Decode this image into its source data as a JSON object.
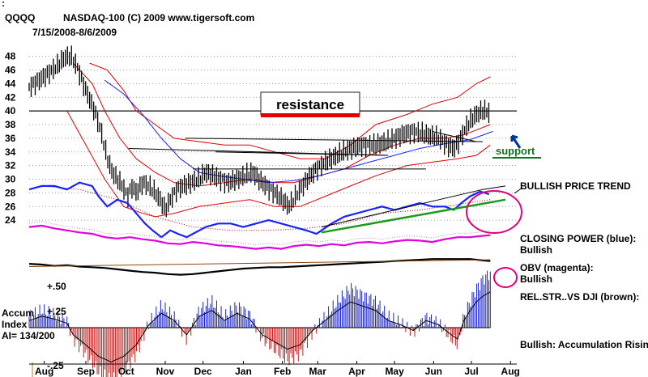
{
  "chart_data": {
    "type": "line",
    "symbol": "QQQQ",
    "title": "NASDAQ-100  (C) 2009 www.tigersoft.com",
    "date_range": "7/15/2008-8/6/2009",
    "y_ticks": [
      48,
      46,
      44,
      42,
      40,
      38,
      36,
      34,
      32,
      30,
      28,
      26,
      24
    ],
    "ylim": [
      22,
      49.5
    ],
    "x_labels": [
      "Aug",
      "Sep",
      "Oct",
      "Nov",
      "Dec",
      "Jan",
      "Feb",
      "Mar",
      "Apr",
      "May",
      "Jun",
      "Jul",
      "Aug"
    ],
    "x_days": [
      12,
      45,
      77,
      108,
      138,
      170,
      201,
      229,
      260,
      290,
      321,
      351,
      382
    ],
    "total_days": 387,
    "annotations": {
      "resistance": "resistance",
      "support": "support",
      "bullish_trend": "BULLISH PRICE TREND",
      "closing_power": "CLOSING POWER (blue):",
      "closing_power_state": "Bullish",
      "obv": "OBV (magenta):",
      "obv_state": "Bullish",
      "relstr": "REL.STR..VS DJI (brown):",
      "accum_rising": "Bullish: Accumulation Rising"
    },
    "accum_index": {
      "label_line1": "Accum",
      "label_line2": "Index",
      "label_line3": "AI= 134/200",
      "plus50": "+.50",
      "plus25": "+.25",
      "minus25": "-.25"
    },
    "price_points": [
      [
        0,
        43.5
      ],
      [
        8,
        44.5
      ],
      [
        15,
        45.5
      ],
      [
        22,
        46.5
      ],
      [
        28,
        47.8
      ],
      [
        33,
        48
      ],
      [
        38,
        46.5
      ],
      [
        45,
        43
      ],
      [
        52,
        40
      ],
      [
        57,
        37
      ],
      [
        62,
        33
      ],
      [
        66,
        31
      ],
      [
        70,
        30
      ],
      [
        74,
        29
      ],
      [
        78,
        27.5
      ],
      [
        82,
        29
      ],
      [
        85,
        28
      ],
      [
        90,
        29.5
      ],
      [
        95,
        29
      ],
      [
        100,
        28
      ],
      [
        104,
        27
      ],
      [
        108,
        25.5
      ],
      [
        112,
        27
      ],
      [
        117,
        28.5
      ],
      [
        122,
        29
      ],
      [
        128,
        29.5
      ],
      [
        135,
        30
      ],
      [
        140,
        31
      ],
      [
        146,
        30.5
      ],
      [
        152,
        30
      ],
      [
        158,
        29.5
      ],
      [
        165,
        30
      ],
      [
        172,
        30.5
      ],
      [
        178,
        31
      ],
      [
        182,
        30
      ],
      [
        188,
        29
      ],
      [
        195,
        28
      ],
      [
        201,
        27
      ],
      [
        206,
        26
      ],
      [
        210,
        27
      ],
      [
        215,
        28.5
      ],
      [
        221,
        30
      ],
      [
        228,
        31.5
      ],
      [
        235,
        32.5
      ],
      [
        245,
        33.5
      ],
      [
        255,
        34.5
      ],
      [
        265,
        35
      ],
      [
        275,
        35
      ],
      [
        285,
        35.5
      ],
      [
        295,
        36.5
      ],
      [
        305,
        37
      ],
      [
        315,
        36.5
      ],
      [
        325,
        36
      ],
      [
        332,
        35
      ],
      [
        337,
        34.5
      ],
      [
        341,
        35.5
      ],
      [
        345,
        37
      ],
      [
        350,
        38.5
      ],
      [
        355,
        39.5
      ],
      [
        360,
        40
      ],
      [
        365,
        39.8
      ]
    ],
    "bb_upper": [
      [
        48,
        47
      ],
      [
        62,
        46
      ],
      [
        75,
        43
      ],
      [
        85,
        40
      ],
      [
        100,
        38
      ],
      [
        115,
        36
      ],
      [
        135,
        35.5
      ],
      [
        155,
        35
      ],
      [
        175,
        35
      ],
      [
        195,
        34
      ],
      [
        215,
        33
      ],
      [
        235,
        33
      ],
      [
        255,
        35
      ],
      [
        275,
        38
      ],
      [
        300,
        39.5
      ],
      [
        320,
        41
      ],
      [
        340,
        42
      ],
      [
        355,
        44
      ],
      [
        366,
        45
      ]
    ],
    "bb_lower": [
      [
        30,
        40
      ],
      [
        45,
        35
      ],
      [
        60,
        30
      ],
      [
        75,
        26
      ],
      [
        90,
        25
      ],
      [
        100,
        24.5
      ],
      [
        115,
        25
      ],
      [
        135,
        26
      ],
      [
        155,
        26.5
      ],
      [
        175,
        27
      ],
      [
        195,
        26
      ],
      [
        215,
        26
      ],
      [
        235,
        27.5
      ],
      [
        255,
        29
      ],
      [
        275,
        30.5
      ],
      [
        300,
        32
      ],
      [
        320,
        32.5
      ],
      [
        340,
        33
      ],
      [
        355,
        33.5
      ],
      [
        366,
        35
      ]
    ],
    "bb_mid": [
      [
        35,
        47
      ],
      [
        50,
        44
      ],
      [
        60,
        40
      ],
      [
        72,
        36
      ],
      [
        85,
        33
      ],
      [
        100,
        31
      ],
      [
        115,
        29.5
      ],
      [
        135,
        29
      ],
      [
        155,
        29.5
      ],
      [
        175,
        30
      ],
      [
        195,
        29.5
      ],
      [
        210,
        29.5
      ],
      [
        230,
        30.5
      ],
      [
        250,
        31.5
      ],
      [
        270,
        33.5
      ],
      [
        290,
        35
      ],
      [
        310,
        36
      ],
      [
        330,
        36
      ],
      [
        345,
        36.5
      ],
      [
        366,
        38
      ]
    ],
    "ma_blue": [
      [
        60,
        44.5
      ],
      [
        75,
        42.5
      ],
      [
        90,
        39.5
      ],
      [
        105,
        36
      ],
      [
        120,
        33
      ],
      [
        135,
        31
      ],
      [
        150,
        30.5
      ],
      [
        170,
        30
      ],
      [
        190,
        29.5
      ],
      [
        210,
        29.8
      ],
      [
        230,
        30.5
      ],
      [
        250,
        31.5
      ],
      [
        270,
        32.5
      ],
      [
        290,
        33.5
      ],
      [
        310,
        34.5
      ],
      [
        330,
        35.2
      ],
      [
        350,
        35.8
      ],
      [
        368,
        37
      ]
    ],
    "resistance_level": 40,
    "resistance_lines": [
      [
        [
          79,
          34.5
        ],
        [
          283,
          33.5
        ]
      ],
      [
        [
          124,
          36
        ],
        [
          360,
          35.5
        ]
      ],
      [
        [
          130,
          31.5
        ],
        [
          315,
          31.5
        ]
      ],
      [
        [
          148,
          34
        ],
        [
          285,
          33.5
        ]
      ]
    ],
    "support_line": [
      [
        320,
        37
      ],
      [
        355,
        35.5
      ]
    ],
    "closing_power": [
      [
        0,
        28.5
      ],
      [
        10,
        29
      ],
      [
        20,
        29
      ],
      [
        30,
        28.5
      ],
      [
        40,
        29.5
      ],
      [
        50,
        29
      ],
      [
        55,
        27.5
      ],
      [
        62,
        26
      ],
      [
        70,
        27
      ],
      [
        78,
        26.5
      ],
      [
        85,
        25
      ],
      [
        92,
        23.5
      ],
      [
        98,
        22.5
      ],
      [
        105,
        21.5
      ],
      [
        112,
        22.5
      ],
      [
        118,
        22
      ],
      [
        125,
        21.5
      ],
      [
        130,
        22
      ],
      [
        140,
        23
      ],
      [
        150,
        23.5
      ],
      [
        160,
        23.5
      ],
      [
        170,
        23
      ],
      [
        180,
        23.5
      ],
      [
        190,
        24
      ],
      [
        200,
        23.5
      ],
      [
        210,
        23
      ],
      [
        220,
        22.5
      ],
      [
        228,
        22
      ],
      [
        232,
        22.5
      ],
      [
        240,
        23.5
      ],
      [
        250,
        24.5
      ],
      [
        260,
        25
      ],
      [
        270,
        25.5
      ],
      [
        280,
        26
      ],
      [
        290,
        25.5
      ],
      [
        300,
        26
      ],
      [
        310,
        26.5
      ],
      [
        320,
        26
      ],
      [
        330,
        26
      ],
      [
        337,
        25.5
      ],
      [
        343,
        26.5
      ],
      [
        350,
        27.5
      ],
      [
        358,
        28.2
      ],
      [
        365,
        27.8
      ]
    ],
    "cp_ma": [
      [
        10,
        29
      ],
      [
        40,
        28.5
      ],
      [
        70,
        27
      ],
      [
        100,
        24.5
      ],
      [
        130,
        23
      ],
      [
        160,
        22.5
      ],
      [
        190,
        22.5
      ],
      [
        220,
        22.8
      ],
      [
        250,
        23.5
      ],
      [
        280,
        25
      ],
      [
        310,
        25.5
      ],
      [
        340,
        26.3
      ],
      [
        366,
        27
      ]
    ],
    "obv": [
      [
        0,
        23
      ],
      [
        10,
        23.2
      ],
      [
        20,
        22.8
      ],
      [
        30,
        22.5
      ],
      [
        40,
        22.2
      ],
      [
        50,
        22
      ],
      [
        60,
        21.5
      ],
      [
        70,
        21.3
      ],
      [
        80,
        21.5
      ],
      [
        90,
        21.2
      ],
      [
        100,
        21
      ],
      [
        110,
        20.6
      ],
      [
        120,
        20.5
      ],
      [
        130,
        20.8
      ],
      [
        140,
        20.6
      ],
      [
        150,
        20.3
      ],
      [
        160,
        20.2
      ],
      [
        170,
        20
      ],
      [
        180,
        19.8
      ],
      [
        190,
        20
      ],
      [
        200,
        19.8
      ],
      [
        210,
        20.2
      ],
      [
        220,
        20.4
      ],
      [
        230,
        20.2
      ],
      [
        240,
        20.5
      ],
      [
        250,
        20.3
      ],
      [
        260,
        20.7
      ],
      [
        270,
        20.8
      ],
      [
        280,
        20.6
      ],
      [
        290,
        20.9
      ],
      [
        300,
        21.1
      ],
      [
        310,
        21
      ],
      [
        320,
        20.8
      ],
      [
        330,
        21.2
      ],
      [
        340,
        21.5
      ],
      [
        350,
        21.5
      ],
      [
        360,
        21.7
      ],
      [
        366,
        21.8
      ]
    ],
    "relstr": [
      [
        0,
        17.6
      ],
      [
        10,
        17.5
      ],
      [
        20,
        17.3
      ],
      [
        30,
        17.4
      ],
      [
        40,
        17.2
      ],
      [
        50,
        17.1
      ],
      [
        60,
        17
      ],
      [
        70,
        16.8
      ],
      [
        80,
        16.6
      ],
      [
        90,
        16.4
      ],
      [
        100,
        16.3
      ],
      [
        110,
        16.1
      ],
      [
        120,
        16
      ],
      [
        130,
        16.1
      ],
      [
        140,
        16.3
      ],
      [
        150,
        16.5
      ],
      [
        160,
        16.7
      ],
      [
        170,
        16.9
      ],
      [
        180,
        17
      ],
      [
        190,
        17.1
      ],
      [
        200,
        17.1
      ],
      [
        210,
        17.2
      ],
      [
        220,
        17.3
      ],
      [
        230,
        17.4
      ],
      [
        240,
        17.5
      ],
      [
        250,
        17.6
      ],
      [
        260,
        17.7
      ],
      [
        270,
        17.8
      ],
      [
        280,
        17.9
      ],
      [
        290,
        18
      ],
      [
        300,
        18.1
      ],
      [
        310,
        18.2
      ],
      [
        320,
        18.3
      ],
      [
        330,
        18.3
      ],
      [
        340,
        18.3
      ],
      [
        350,
        18.3
      ],
      [
        360,
        18.1
      ],
      [
        366,
        18
      ]
    ],
    "accum_values": [
      [
        0,
        0.05
      ],
      [
        10,
        0.08
      ],
      [
        20,
        0.06
      ],
      [
        30,
        0.03
      ],
      [
        35,
        -0.05
      ],
      [
        45,
        -0.12
      ],
      [
        55,
        -0.2
      ],
      [
        65,
        -0.24
      ],
      [
        75,
        -0.2
      ],
      [
        85,
        -0.12
      ],
      [
        95,
        0.02
      ],
      [
        105,
        0.1
      ],
      [
        115,
        0.05
      ],
      [
        125,
        -0.05
      ],
      [
        135,
        0.08
      ],
      [
        145,
        0.12
      ],
      [
        155,
        0.05
      ],
      [
        165,
        0.1
      ],
      [
        175,
        0.06
      ],
      [
        185,
        -0.05
      ],
      [
        195,
        -0.1
      ],
      [
        205,
        -0.15
      ],
      [
        215,
        -0.12
      ],
      [
        225,
        -0.02
      ],
      [
        235,
        0.05
      ],
      [
        245,
        0.12
      ],
      [
        255,
        0.18
      ],
      [
        265,
        0.15
      ],
      [
        275,
        0.12
      ],
      [
        285,
        0.05
      ],
      [
        295,
        0.02
      ],
      [
        305,
        -0.02
      ],
      [
        315,
        0.05
      ],
      [
        325,
        0.02
      ],
      [
        335,
        -0.05
      ],
      [
        340,
        -0.08
      ],
      [
        345,
        0.05
      ],
      [
        350,
        0.12
      ],
      [
        355,
        0.18
      ],
      [
        360,
        0.22
      ],
      [
        366,
        0.25
      ]
    ]
  }
}
